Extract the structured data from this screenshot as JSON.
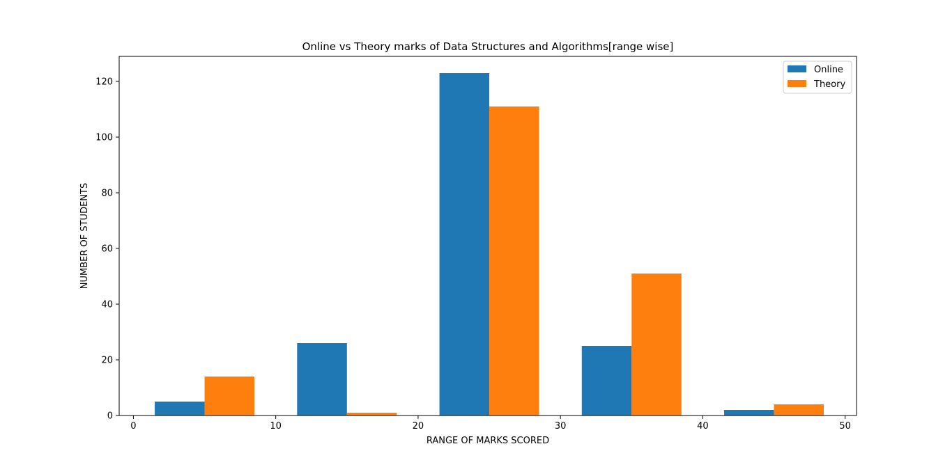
{
  "chart_data": {
    "type": "bar",
    "title": "Online vs Theory marks of Data Structures and Algorithms[range wise]",
    "xlabel": "RANGE OF MARKS SCORED",
    "ylabel": "NUMBER OF STUDENTS",
    "x_bin_centers": [
      5,
      15,
      25,
      35,
      45
    ],
    "bar_width": 3.5,
    "xlim": [
      -1,
      50.8
    ],
    "ylim": [
      0,
      129
    ],
    "xticks": [
      0,
      10,
      20,
      30,
      40,
      50
    ],
    "yticks": [
      0,
      20,
      40,
      60,
      80,
      100,
      120
    ],
    "grid": false,
    "legend_position": "top-right",
    "series": [
      {
        "name": "Online",
        "color": "#1f77b4",
        "values": [
          5,
          26,
          123,
          25,
          2
        ]
      },
      {
        "name": "Theory",
        "color": "#ff7f0e",
        "values": [
          14,
          1,
          111,
          51,
          4
        ]
      }
    ]
  }
}
